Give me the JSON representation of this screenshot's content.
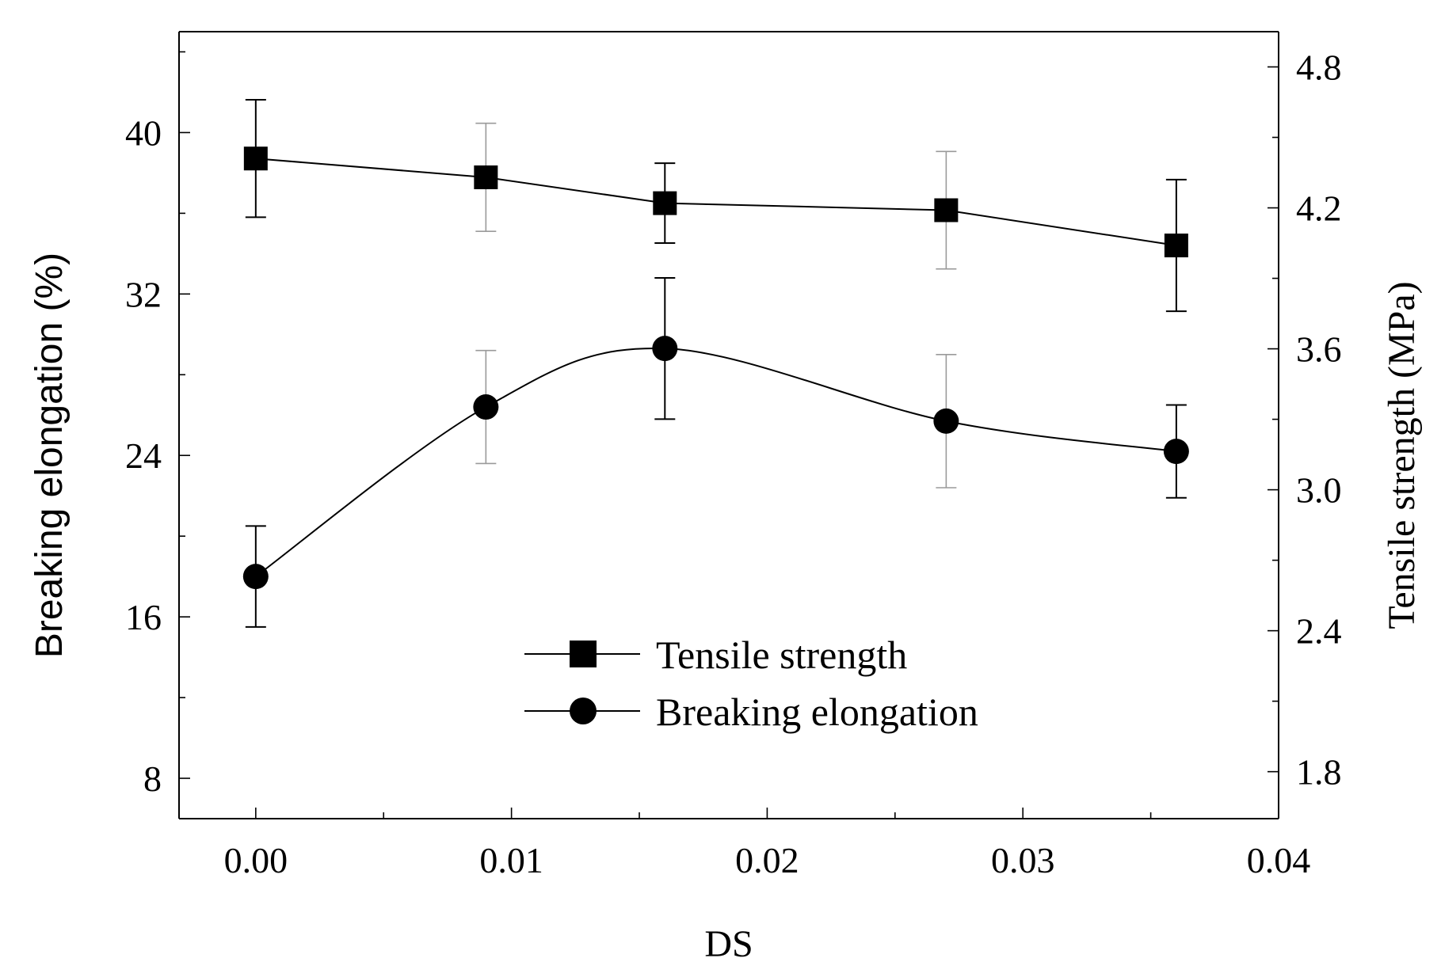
{
  "chart_data": {
    "type": "line",
    "title": "",
    "xlabel": "DS",
    "ylabel_left": "Breaking elongation (%)",
    "ylabel_right": "Tensile strength (MPa)",
    "xlim": [
      -0.003,
      0.04
    ],
    "ylim_left": [
      6,
      45
    ],
    "ylim_right": [
      1.6,
      4.95
    ],
    "x_ticks": [
      "0.00",
      "0.01",
      "0.02",
      "0.03",
      "0.04"
    ],
    "x_tick_values": [
      0,
      0.01,
      0.02,
      0.03,
      0.04
    ],
    "y_left_ticks": [
      "8",
      "16",
      "24",
      "32",
      "40"
    ],
    "y_left_tick_values": [
      8,
      16,
      24,
      32,
      40
    ],
    "y_right_ticks": [
      "1.8",
      "2.4",
      "3.0",
      "3.6",
      "4.2",
      "4.8"
    ],
    "y_right_tick_values": [
      1.8,
      2.4,
      3.0,
      3.6,
      4.2,
      4.8
    ],
    "legend_position": "bottom-center",
    "series": [
      {
        "name": "Tensile strength",
        "axis": "right",
        "marker": "square",
        "x": [
          0,
          0.009,
          0.016,
          0.027,
          0.036
        ],
        "values": [
          4.41,
          4.33,
          4.22,
          4.19,
          4.04
        ],
        "err": [
          0.25,
          0.23,
          0.17,
          0.25,
          0.28
        ]
      },
      {
        "name": "Breaking elongation",
        "axis": "left",
        "marker": "circle",
        "x": [
          0,
          0.009,
          0.016,
          0.027,
          0.036
        ],
        "values": [
          18.0,
          26.4,
          29.3,
          25.7,
          24.2
        ],
        "err": [
          2.5,
          2.8,
          3.5,
          3.3,
          2.3
        ]
      }
    ]
  }
}
